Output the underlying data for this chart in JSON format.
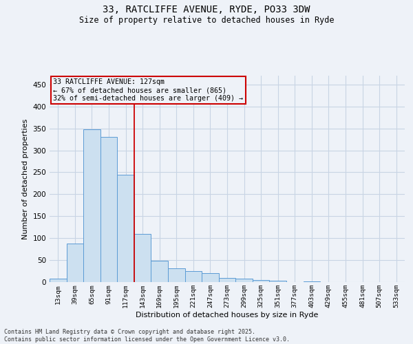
{
  "title_line1": "33, RATCLIFFE AVENUE, RYDE, PO33 3DW",
  "title_line2": "Size of property relative to detached houses in Ryde",
  "xlabel": "Distribution of detached houses by size in Ryde",
  "ylabel": "Number of detached properties",
  "categories": [
    "13sqm",
    "39sqm",
    "65sqm",
    "91sqm",
    "117sqm",
    "143sqm",
    "169sqm",
    "195sqm",
    "221sqm",
    "247sqm",
    "273sqm",
    "299sqm",
    "325sqm",
    "351sqm",
    "377sqm",
    "403sqm",
    "429sqm",
    "455sqm",
    "481sqm",
    "507sqm",
    "533sqm"
  ],
  "values": [
    8,
    87,
    348,
    330,
    245,
    110,
    48,
    32,
    25,
    21,
    10,
    8,
    5,
    3,
    0,
    2,
    0,
    0,
    0,
    0,
    0
  ],
  "bar_color": "#cce0f0",
  "bar_edge_color": "#5b9bd5",
  "vline_x_index": 4,
  "vline_color": "#cc0000",
  "ylim": [
    0,
    470
  ],
  "yticks": [
    0,
    50,
    100,
    150,
    200,
    250,
    300,
    350,
    400,
    450
  ],
  "annotation_line1": "33 RATCLIFFE AVENUE: 127sqm",
  "annotation_line2": "← 67% of detached houses are smaller (865)",
  "annotation_line3": "32% of semi-detached houses are larger (409) →",
  "annotation_box_color": "#cc0000",
  "footer_line1": "Contains HM Land Registry data © Crown copyright and database right 2025.",
  "footer_line2": "Contains public sector information licensed under the Open Government Licence v3.0.",
  "bg_color": "#eef2f8",
  "grid_color": "#c8d4e4",
  "title_fontsize": 10,
  "subtitle_fontsize": 8.5
}
